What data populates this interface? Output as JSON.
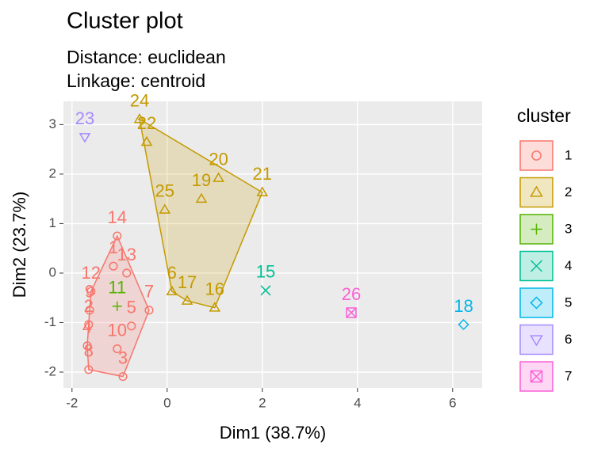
{
  "chart_data": {
    "type": "scatter",
    "title": "Cluster plot",
    "subtitle": [
      "Distance:  euclidean",
      "Linkage:  centroid"
    ],
    "x_label": "Dim1 (38.7%)",
    "y_label": "Dim2 (23.7%)",
    "legend_title": "cluster",
    "xlim": [
      -2.18,
      6.62
    ],
    "ylim": [
      -2.32,
      3.47
    ],
    "xticks": [
      -2,
      0,
      2,
      4,
      6
    ],
    "yticks": [
      -2,
      -1,
      0,
      1,
      2,
      3
    ],
    "grid": true,
    "series": [
      {
        "name": "1",
        "color": "#F8766D",
        "shape": "circle",
        "labels": [
          "14",
          "13",
          "12",
          "9",
          "2",
          "10",
          "5",
          "7",
          "3",
          "1",
          "4",
          "8"
        ],
        "x": [
          -1.05,
          -0.85,
          -1.6,
          -1.63,
          -1.65,
          -1.05,
          -0.75,
          -0.38,
          -0.93,
          -1.13,
          -1.68,
          -1.65
        ],
        "values": [
          0.75,
          0.0,
          -0.37,
          -0.75,
          -1.04,
          -1.53,
          -1.07,
          -0.75,
          -2.09,
          0.14,
          -1.47,
          -1.95
        ]
      },
      {
        "name": "2",
        "color": "#C49A00",
        "shape": "triangle",
        "labels": [
          "24",
          "22",
          "20",
          "19",
          "21",
          "25",
          "6",
          "17",
          "16"
        ],
        "x": [
          -0.58,
          -0.43,
          1.08,
          0.72,
          2.0,
          -0.05,
          0.1,
          0.42,
          1.0
        ],
        "values": [
          3.11,
          2.65,
          1.92,
          1.5,
          1.63,
          1.28,
          -0.37,
          -0.56,
          -0.7
        ]
      },
      {
        "name": "3",
        "color": "#53B400",
        "shape": "plus",
        "labels": [
          "11"
        ],
        "x": [
          -1.05
        ],
        "values": [
          -0.67
        ]
      },
      {
        "name": "4",
        "color": "#00C094",
        "shape": "x",
        "labels": [
          "15"
        ],
        "x": [
          2.07
        ],
        "values": [
          -0.35
        ]
      },
      {
        "name": "5",
        "color": "#00B6EB",
        "shape": "diamond",
        "labels": [
          "18"
        ],
        "x": [
          6.23
        ],
        "values": [
          -1.04
        ]
      },
      {
        "name": "6",
        "color": "#A58AFF",
        "shape": "triangle-down",
        "labels": [
          "23"
        ],
        "x": [
          -1.73
        ],
        "values": [
          2.75
        ]
      },
      {
        "name": "7",
        "color": "#FB61D7",
        "shape": "square-x",
        "labels": [
          "26"
        ],
        "x": [
          3.87
        ],
        "values": [
          -0.8
        ]
      }
    ]
  }
}
